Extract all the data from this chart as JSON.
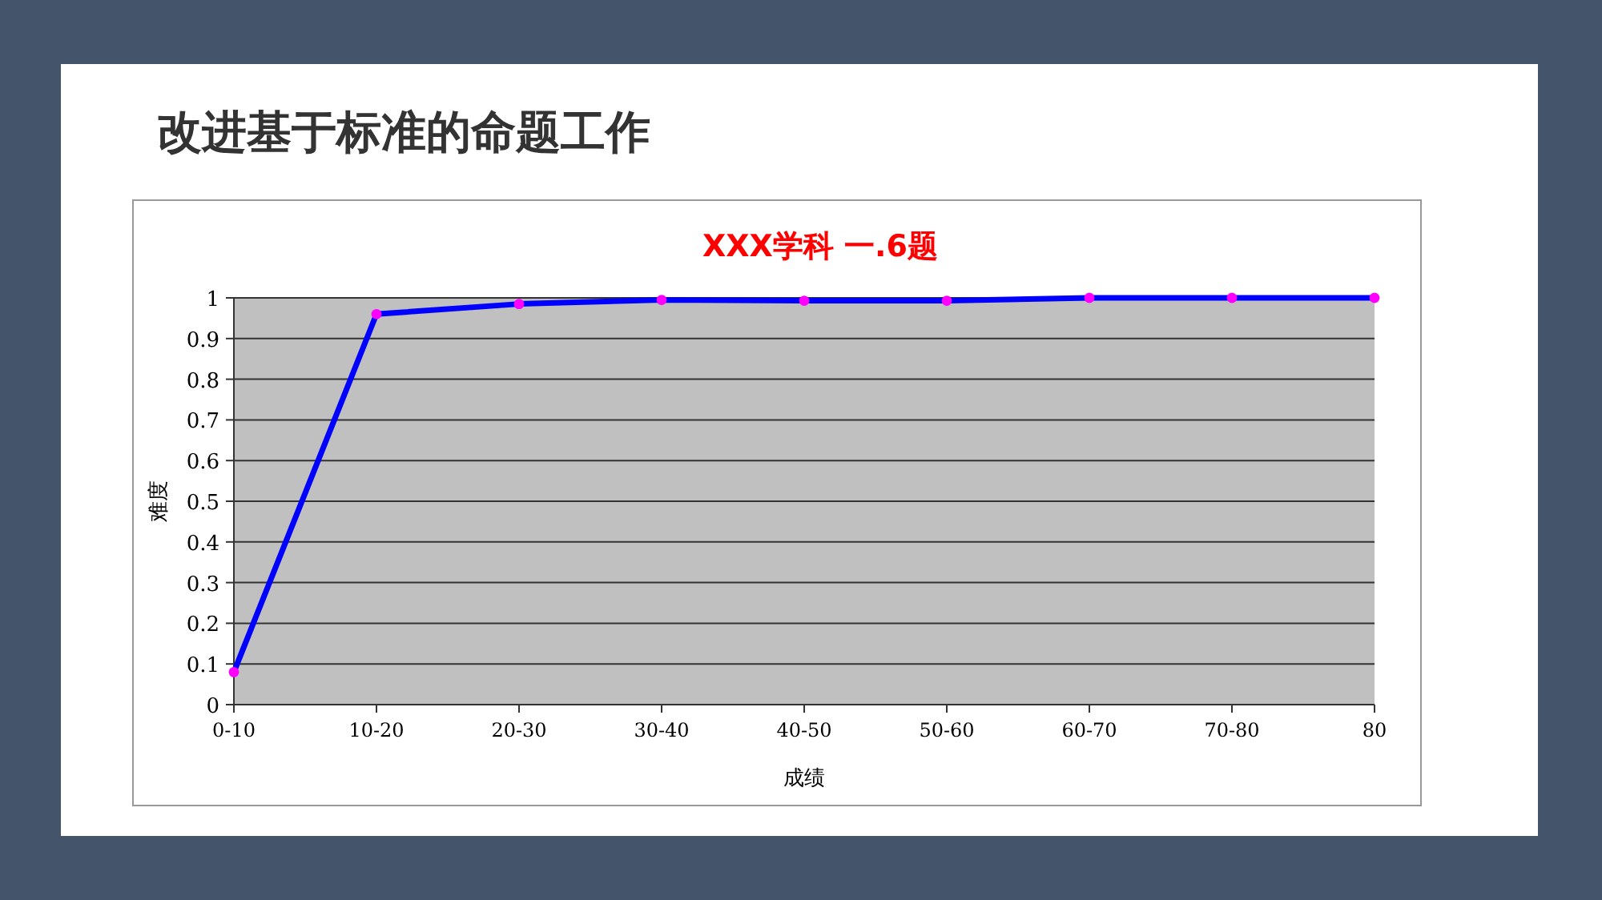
{
  "chart_data": {
    "type": "line",
    "title": "改进基于标准的命题工作",
    "subtitle": "XXX学科 一.6题",
    "xlabel": "成绩",
    "ylabel": "难度",
    "categories": [
      "0-10",
      "10-20",
      "20-30",
      "30-40",
      "40-50",
      "50-60",
      "60-70",
      "70-80",
      "80"
    ],
    "series": [
      {
        "color": "#0000ff",
        "values": [
          0.08,
          0.96,
          0.985,
          0.995,
          0.993,
          0.993,
          1.0,
          1.0,
          1.0
        ]
      }
    ],
    "ylim": [
      0,
      1
    ],
    "yticks": [
      0,
      0.1,
      0.2,
      0.3,
      0.4,
      0.5,
      0.6,
      0.7,
      0.8,
      0.9,
      1
    ],
    "grid": "y",
    "marker": "circle"
  }
}
